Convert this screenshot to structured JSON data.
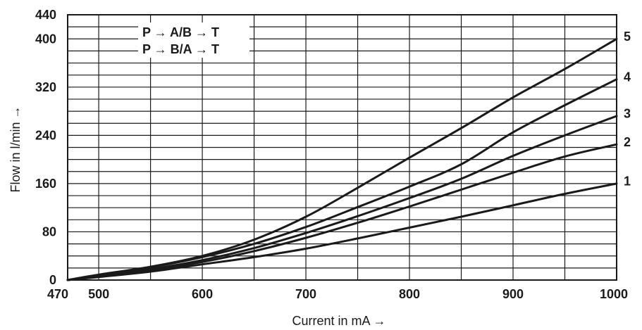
{
  "chart_data": {
    "type": "line",
    "xlabel": "Current in mA →",
    "ylabel": "Flow in l/min →",
    "xlim": [
      470,
      1000
    ],
    "ylim": [
      0,
      440
    ],
    "x_major_ticks": [
      500,
      600,
      700,
      800,
      900,
      1000
    ],
    "x_tick_labels": [
      "470",
      "500",
      "600",
      "700",
      "800",
      "900",
      "1000"
    ],
    "x_tick_values": [
      470,
      500,
      600,
      700,
      800,
      900,
      1000
    ],
    "y_tick_labels": [
      "0",
      "80",
      "160",
      "240",
      "320",
      "400",
      "440"
    ],
    "y_tick_values": [
      0,
      80,
      160,
      240,
      320,
      400,
      440
    ],
    "grid": true,
    "legend_lines": [
      "P → A/B → T",
      "P → B/A → T"
    ],
    "series": [
      {
        "name": "1",
        "x": [
          470,
          500,
          550,
          600,
          650,
          700,
          750,
          800,
          850,
          900,
          950,
          1000
        ],
        "values": [
          0,
          5,
          14,
          26,
          38,
          52,
          69,
          87,
          105,
          124,
          143,
          160
        ]
      },
      {
        "name": "2",
        "x": [
          470,
          500,
          550,
          600,
          650,
          700,
          750,
          800,
          850,
          900,
          950,
          1000
        ],
        "values": [
          0,
          6,
          16,
          30,
          48,
          70,
          95,
          122,
          150,
          178,
          205,
          225
        ]
      },
      {
        "name": "3",
        "x": [
          470,
          500,
          550,
          600,
          650,
          700,
          750,
          800,
          850,
          900,
          950,
          1000
        ],
        "values": [
          0,
          7,
          18,
          33,
          53,
          78,
          106,
          136,
          168,
          206,
          240,
          272
        ]
      },
      {
        "name": "4",
        "x": [
          470,
          500,
          550,
          600,
          650,
          700,
          750,
          800,
          850,
          900,
          950,
          1000
        ],
        "values": [
          0,
          8,
          21,
          38,
          60,
          88,
          121,
          155,
          192,
          245,
          290,
          333
        ]
      },
      {
        "name": "5",
        "x": [
          470,
          500,
          550,
          600,
          650,
          700,
          750,
          800,
          850,
          900,
          950,
          1000
        ],
        "values": [
          0,
          9,
          22,
          40,
          67,
          105,
          153,
          203,
          252,
          303,
          350,
          400
        ]
      }
    ]
  }
}
